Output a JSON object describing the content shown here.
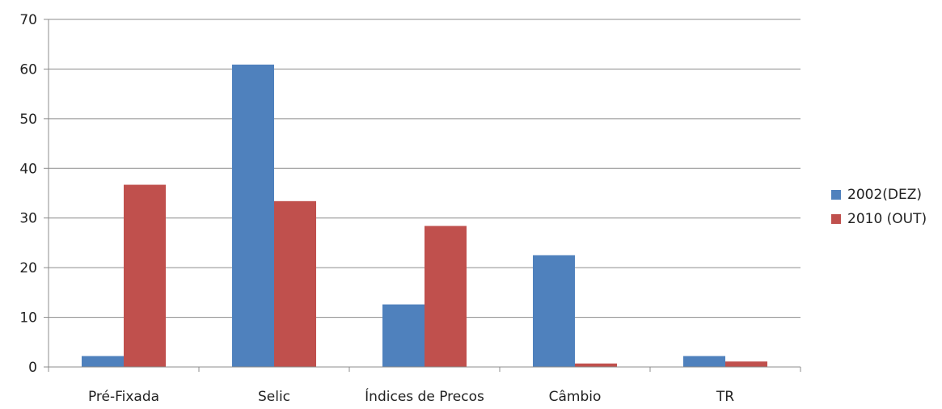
{
  "chart_data": {
    "type": "bar",
    "title": "",
    "xlabel": "",
    "ylabel": "",
    "categories": [
      "Pré-Fixada",
      "Selic",
      "Índices de Precos",
      "Câmbio",
      "TR"
    ],
    "series": [
      {
        "name": "2002(DEZ)",
        "color": "#4f81bd",
        "values": [
          2.2,
          60.9,
          12.6,
          22.5,
          2.2
        ]
      },
      {
        "name": "2010 (OUT)",
        "color": "#c0504d",
        "values": [
          36.7,
          33.4,
          28.4,
          0.7,
          1.1
        ]
      }
    ],
    "ylim": [
      0,
      70
    ],
    "yticks": [
      "0",
      "10",
      "20",
      "30",
      "40",
      "50",
      "60",
      "70"
    ],
    "grid": true,
    "legend_position": "right"
  }
}
